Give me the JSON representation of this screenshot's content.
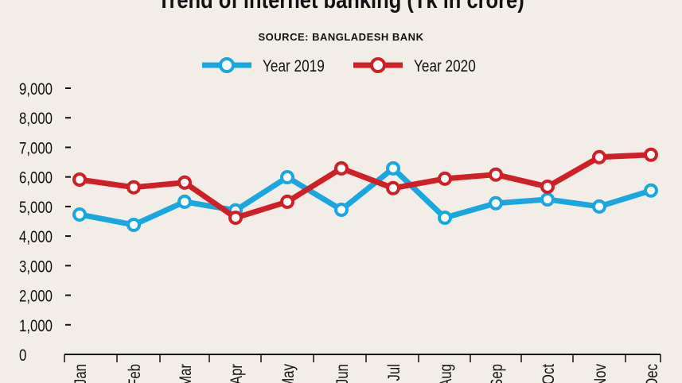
{
  "chart_data": {
    "type": "line",
    "title": "Trend of internet banking (Tk in crore)",
    "subtitle": "SOURCE: BANGLADESH BANK",
    "categories": [
      "Jan",
      "Feb",
      "Mar",
      "Apr",
      "May",
      "Jun",
      "Jul",
      "Aug",
      "Sep",
      "Oct",
      "Nov",
      "Dec"
    ],
    "series": [
      {
        "name": "Year 2019",
        "color": "#1aa7e0",
        "values": [
          4730,
          4380,
          5160,
          4870,
          5990,
          4890,
          6290,
          4620,
          5110,
          5240,
          5000,
          5540
        ]
      },
      {
        "name": "Year 2020",
        "color": "#cf2027",
        "values": [
          5910,
          5650,
          5810,
          4620,
          5160,
          6290,
          5620,
          5940,
          6080,
          5670,
          6670,
          6750
        ]
      }
    ],
    "yticks": [
      "0",
      "1,000",
      "2,000",
      "3,000",
      "4,000",
      "5,000",
      "6,000",
      "7,000",
      "8,000",
      "9,000"
    ],
    "ylim": [
      0,
      9000
    ],
    "grid": false,
    "legend": "top-center"
  }
}
